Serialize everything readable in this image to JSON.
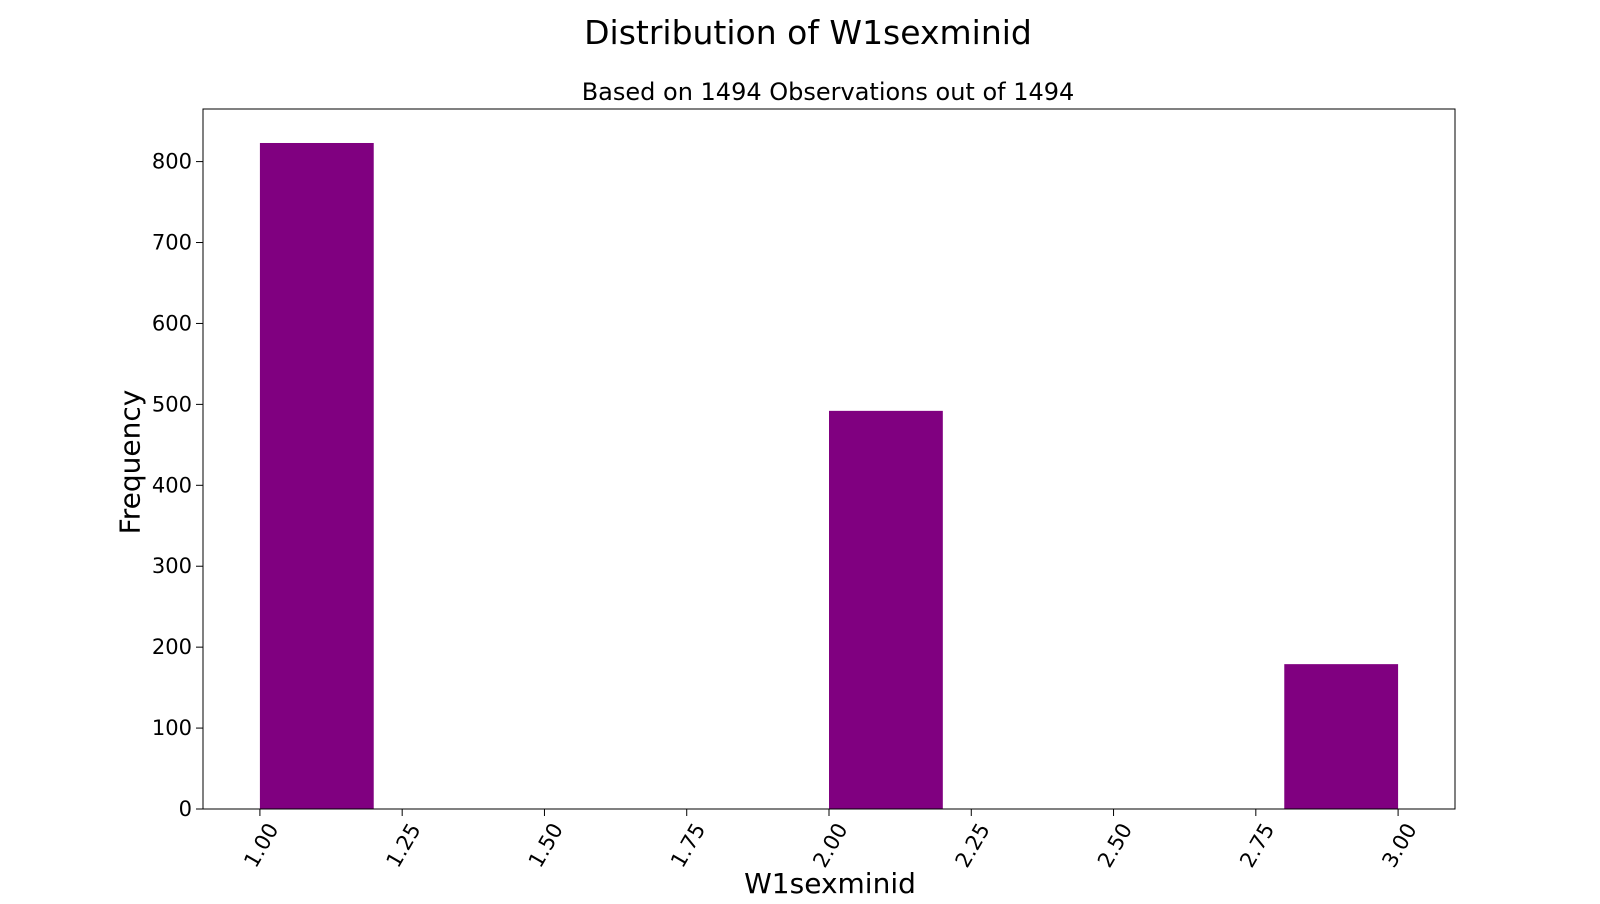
{
  "chart_data": {
    "type": "bar",
    "title": "Distribution of W1sexminid",
    "subtitle": "Based on 1494 Observations out of 1494",
    "xlabel": "W1sexminid",
    "ylabel": "Frequency",
    "bins": [
      {
        "x0": 1.0,
        "x1": 1.2,
        "value": 823
      },
      {
        "x0": 1.2,
        "x1": 1.4,
        "value": 0
      },
      {
        "x0": 1.4,
        "x1": 1.6,
        "value": 0
      },
      {
        "x0": 1.6,
        "x1": 1.8,
        "value": 0
      },
      {
        "x0": 1.8,
        "x1": 2.0,
        "value": 0
      },
      {
        "x0": 2.0,
        "x1": 2.2,
        "value": 492
      },
      {
        "x0": 2.2,
        "x1": 2.4,
        "value": 0
      },
      {
        "x0": 2.4,
        "x1": 2.6,
        "value": 0
      },
      {
        "x0": 2.6,
        "x1": 2.8,
        "value": 0
      },
      {
        "x0": 2.8,
        "x1": 3.0,
        "value": 179
      }
    ],
    "xlim": [
      0.9,
      3.1
    ],
    "ylim": [
      0,
      865
    ],
    "x_ticks": [
      "1.00",
      "1.25",
      "1.50",
      "1.75",
      "2.00",
      "2.25",
      "2.50",
      "2.75",
      "3.00"
    ],
    "y_ticks": [
      "0",
      "100",
      "200",
      "300",
      "400",
      "500",
      "600",
      "700",
      "800"
    ],
    "bar_color": "#800080",
    "grid": false
  }
}
